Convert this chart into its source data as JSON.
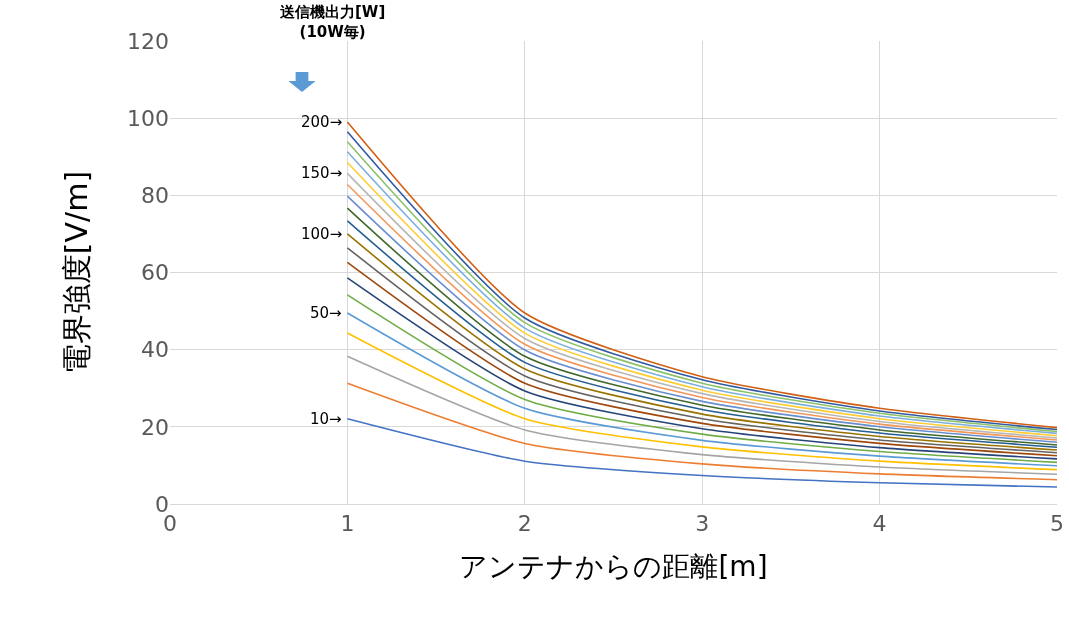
{
  "chart_data": {
    "type": "line",
    "xlabel": "アンテナからの距離[m]",
    "ylabel": "電界強度[V/m]",
    "x": [
      1,
      2,
      3,
      4,
      5
    ],
    "xlim": [
      0,
      5
    ],
    "xticks": [
      0,
      1,
      2,
      3,
      4,
      5
    ],
    "ylim": [
      0,
      120
    ],
    "yticks": [
      0,
      20,
      40,
      60,
      80,
      100,
      120
    ],
    "grid": true,
    "marker": "none",
    "line_style": "solid",
    "annotations": [
      "送信機出力[W]\n(10W毎)"
    ],
    "series": [
      {
        "name": "10→",
        "color": "#4472c4",
        "values": [
          22.1,
          11.1,
          7.4,
          5.5,
          4.4
        ]
      },
      {
        "color": "#ed7d31",
        "values": [
          31.3,
          15.7,
          10.4,
          7.8,
          6.3
        ]
      },
      {
        "color": "#a5a5a5",
        "values": [
          38.3,
          19.2,
          12.8,
          9.6,
          7.7
        ]
      },
      {
        "color": "#ffc000",
        "values": [
          44.3,
          22.1,
          14.8,
          11.1,
          8.9
        ]
      },
      {
        "name": "50→",
        "color": "#5b9bd5",
        "values": [
          49.5,
          24.8,
          16.5,
          12.4,
          9.9
        ]
      },
      {
        "color": "#70ad47",
        "values": [
          54.2,
          27.1,
          18.1,
          13.6,
          10.8
        ]
      },
      {
        "color": "#264478",
        "values": [
          58.6,
          29.3,
          19.5,
          14.6,
          11.7
        ]
      },
      {
        "color": "#9e480e",
        "values": [
          62.6,
          31.3,
          20.9,
          15.7,
          12.5
        ]
      },
      {
        "color": "#636363",
        "values": [
          66.4,
          33.2,
          22.1,
          16.6,
          13.3
        ]
      },
      {
        "name": "100→",
        "color": "#997300",
        "values": [
          70.0,
          35.0,
          23.3,
          17.5,
          14.0
        ]
      },
      {
        "color": "#255e91",
        "values": [
          73.4,
          36.7,
          24.5,
          18.4,
          14.7
        ]
      },
      {
        "color": "#43682b",
        "values": [
          76.7,
          38.3,
          25.6,
          19.2,
          15.3
        ]
      },
      {
        "color": "#698ed0",
        "values": [
          79.8,
          39.9,
          26.6,
          20.0,
          16.0
        ]
      },
      {
        "color": "#f1975a",
        "values": [
          82.8,
          41.4,
          27.6,
          20.7,
          16.6
        ]
      },
      {
        "name": "150→",
        "color": "#b7b7b7",
        "values": [
          85.7,
          42.9,
          28.6,
          21.4,
          17.1
        ]
      },
      {
        "color": "#ffcd33",
        "values": [
          88.5,
          44.3,
          29.5,
          22.1,
          17.7
        ]
      },
      {
        "color": "#7cafdd",
        "values": [
          91.3,
          45.6,
          30.4,
          22.8,
          18.3
        ]
      },
      {
        "color": "#8cc168",
        "values": [
          93.9,
          47.0,
          31.3,
          23.5,
          18.8
        ]
      },
      {
        "color": "#335aa1",
        "values": [
          96.5,
          48.2,
          32.2,
          24.1,
          19.3
        ]
      },
      {
        "name": "200→",
        "color": "#d26012",
        "values": [
          99.0,
          49.5,
          33.0,
          24.8,
          19.8
        ]
      }
    ]
  }
}
